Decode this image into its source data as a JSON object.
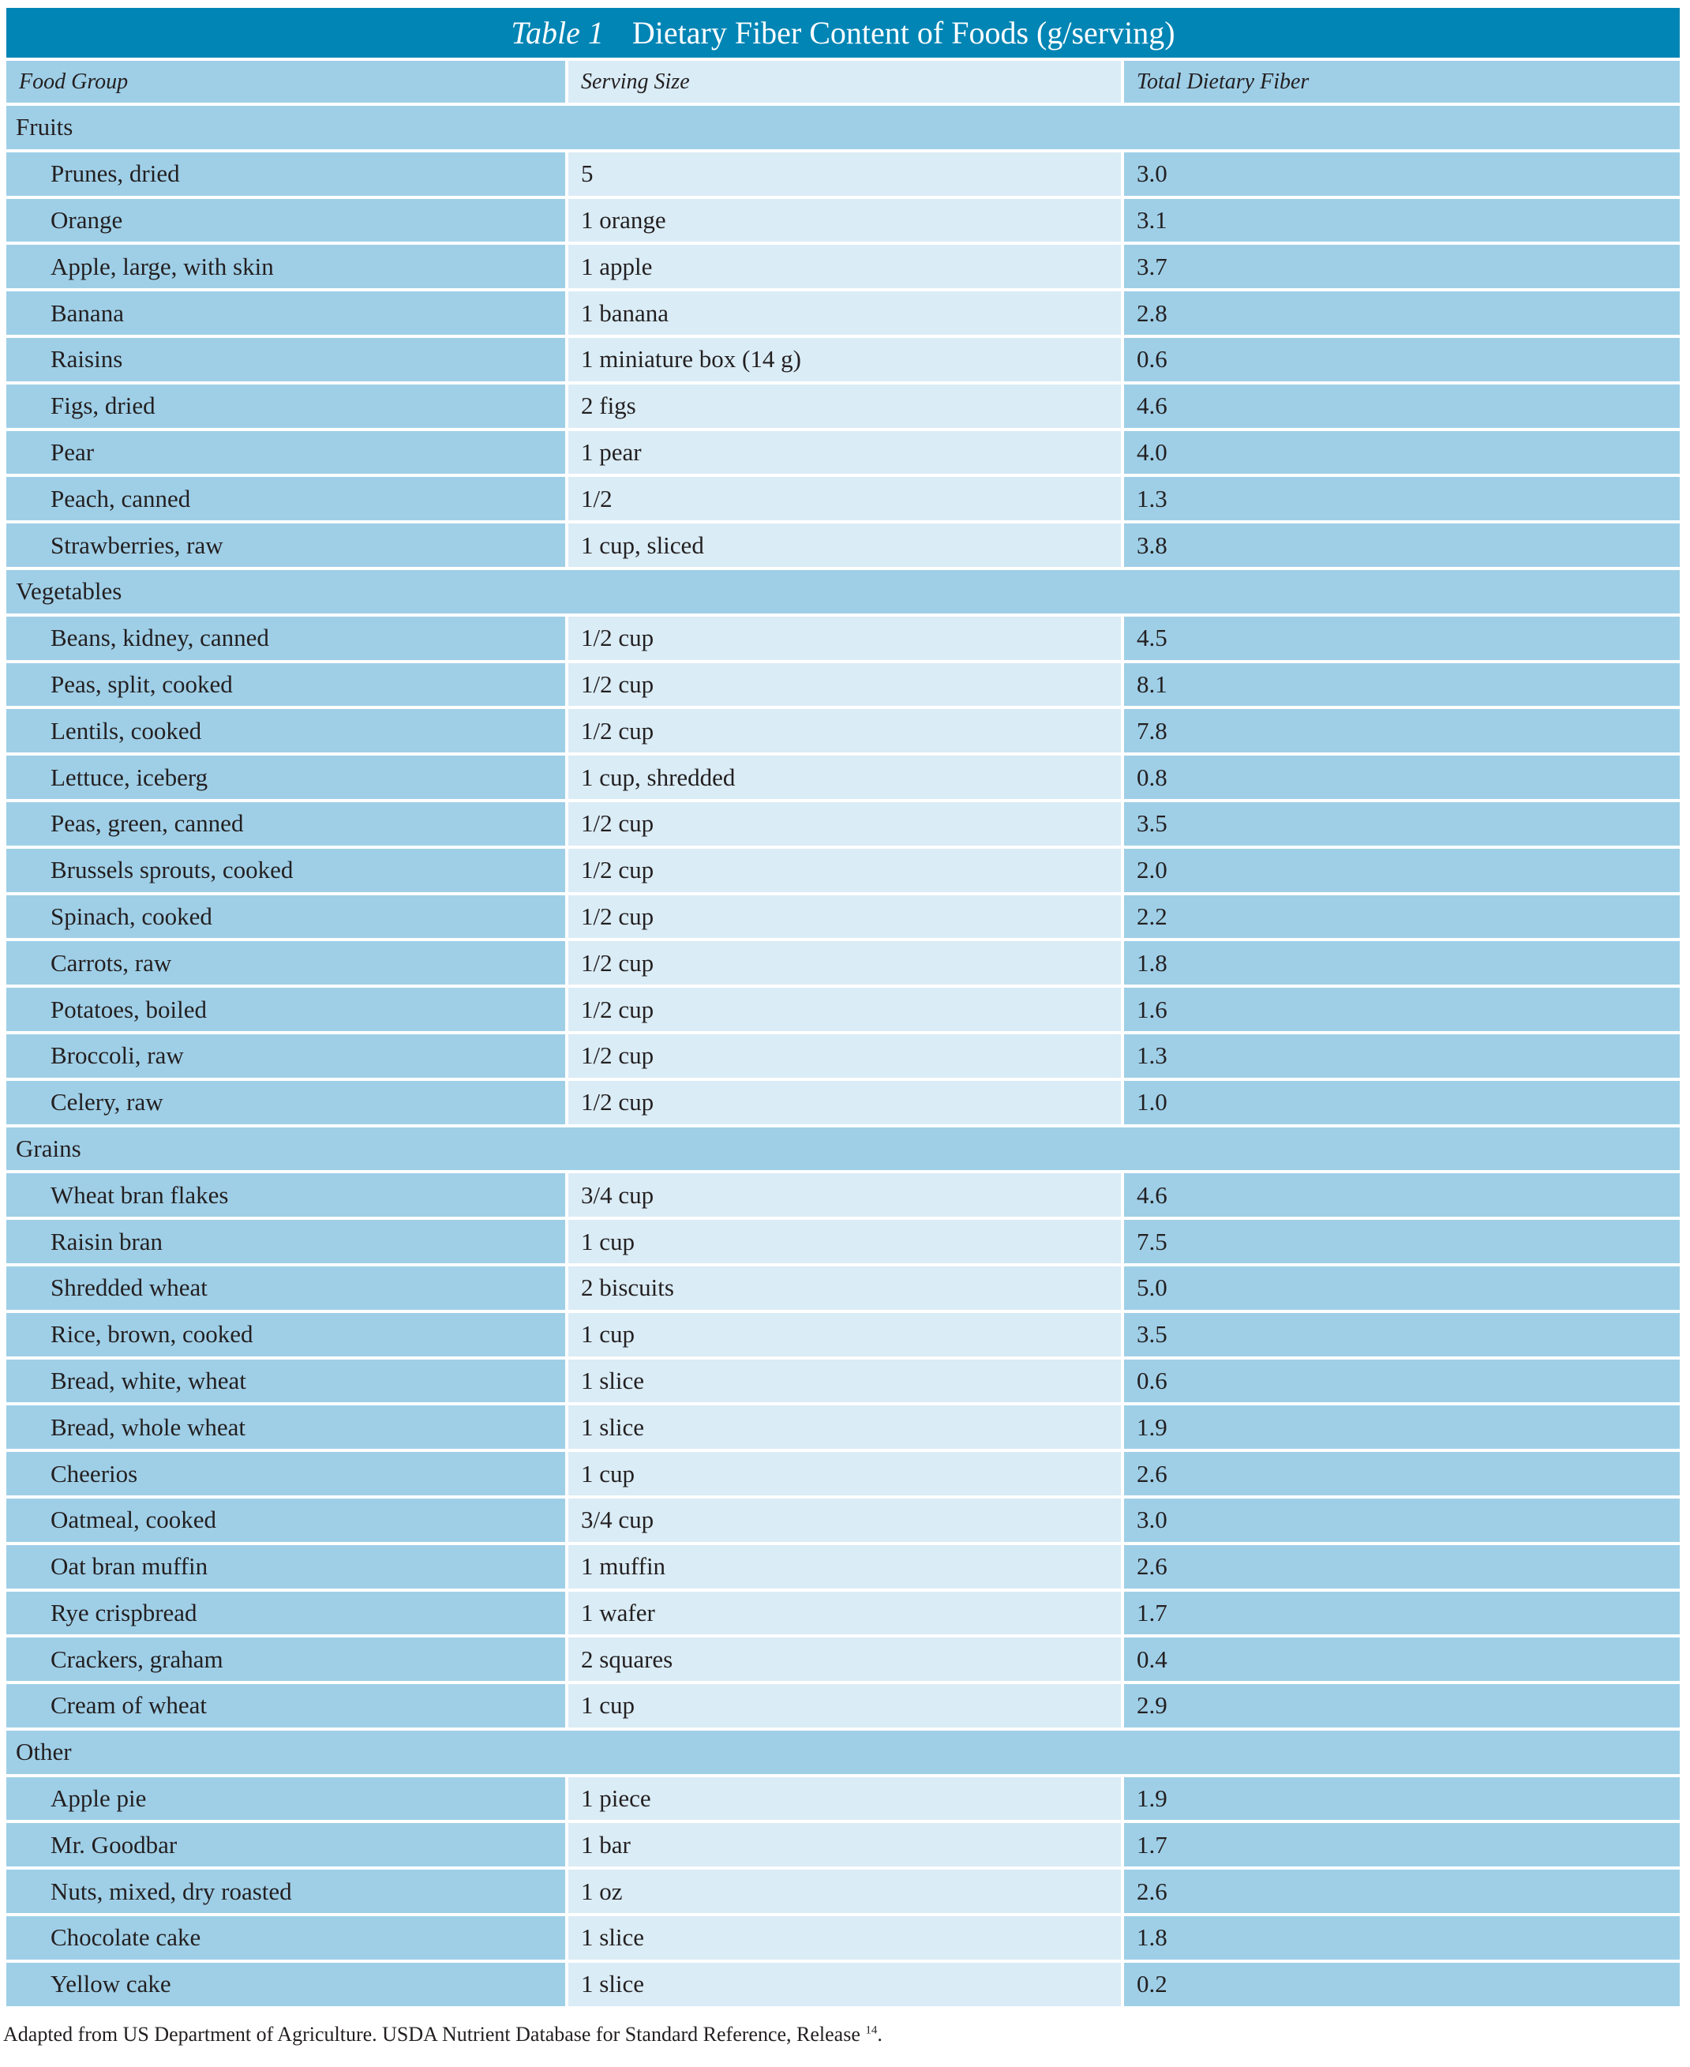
{
  "title": {
    "label": "Table 1",
    "text": "Dietary Fiber Content of Foods (g/serving)"
  },
  "colors": {
    "title_bar": "#0085b5",
    "dark_cell": "#9fcfe7",
    "light_cell": "#daecf6"
  },
  "columns": [
    "Food Group",
    "Serving Size",
    "Total Dietary Fiber"
  ],
  "groups": [
    {
      "name": "Fruits",
      "rows": [
        [
          "Prunes, dried",
          "5",
          "3.0"
        ],
        [
          "Orange",
          "1 orange",
          "3.1"
        ],
        [
          "Apple, large, with skin",
          "1 apple",
          "3.7"
        ],
        [
          "Banana",
          "1 banana",
          "2.8"
        ],
        [
          "Raisins",
          "1 miniature box (14 g)",
          "0.6"
        ],
        [
          "Figs, dried",
          "2 figs",
          "4.6"
        ],
        [
          "Pear",
          "1 pear",
          "4.0"
        ],
        [
          "Peach, canned",
          "1/2",
          "1.3"
        ],
        [
          "Strawberries, raw",
          "1 cup, sliced",
          "3.8"
        ]
      ]
    },
    {
      "name": "Vegetables",
      "rows": [
        [
          "Beans, kidney, canned",
          "1/2 cup",
          "4.5"
        ],
        [
          "Peas, split, cooked",
          "1/2 cup",
          "8.1"
        ],
        [
          "Lentils, cooked",
          "1/2 cup",
          "7.8"
        ],
        [
          "Lettuce, iceberg",
          "1 cup, shredded",
          "0.8"
        ],
        [
          "Peas, green, canned",
          "1/2 cup",
          "3.5"
        ],
        [
          "Brussels sprouts, cooked",
          "1/2 cup",
          "2.0"
        ],
        [
          "Spinach, cooked",
          "1/2 cup",
          "2.2"
        ],
        [
          "Carrots, raw",
          "1/2 cup",
          "1.8"
        ],
        [
          "Potatoes, boiled",
          "1/2 cup",
          "1.6"
        ],
        [
          "Broccoli, raw",
          "1/2 cup",
          "1.3"
        ],
        [
          "Celery, raw",
          "1/2 cup",
          "1.0"
        ]
      ]
    },
    {
      "name": "Grains",
      "rows": [
        [
          "Wheat bran flakes",
          "3/4 cup",
          "4.6"
        ],
        [
          "Raisin bran",
          "1 cup",
          "7.5"
        ],
        [
          "Shredded wheat",
          "2 biscuits",
          "5.0"
        ],
        [
          "Rice, brown, cooked",
          "1 cup",
          "3.5"
        ],
        [
          "Bread, white, wheat",
          "1 slice",
          "0.6"
        ],
        [
          "Bread, whole wheat",
          "1 slice",
          "1.9"
        ],
        [
          "Cheerios",
          "1 cup",
          "2.6"
        ],
        [
          "Oatmeal, cooked",
          "3/4 cup",
          "3.0"
        ],
        [
          "Oat bran muffin",
          "1 muffin",
          "2.6"
        ],
        [
          "Rye crispbread",
          "1 wafer",
          "1.7"
        ],
        [
          "Crackers, graham",
          "2 squares",
          "0.4"
        ],
        [
          "Cream of wheat",
          "1 cup",
          "2.9"
        ]
      ]
    },
    {
      "name": "Other",
      "rows": [
        [
          "Apple pie",
          "1 piece",
          "1.9"
        ],
        [
          "Mr. Goodbar",
          "1 bar",
          "1.7"
        ],
        [
          "Nuts, mixed, dry roasted",
          "1 oz",
          "2.6"
        ],
        [
          "Chocolate cake",
          "1 slice",
          "1.8"
        ],
        [
          "Yellow cake",
          "1 slice",
          "0.2"
        ]
      ]
    }
  ],
  "footnote": {
    "text": "Adapted from US Department of Agriculture. USDA Nutrient Database for Standard Reference, Release ",
    "superscript": "14",
    "end": "."
  }
}
